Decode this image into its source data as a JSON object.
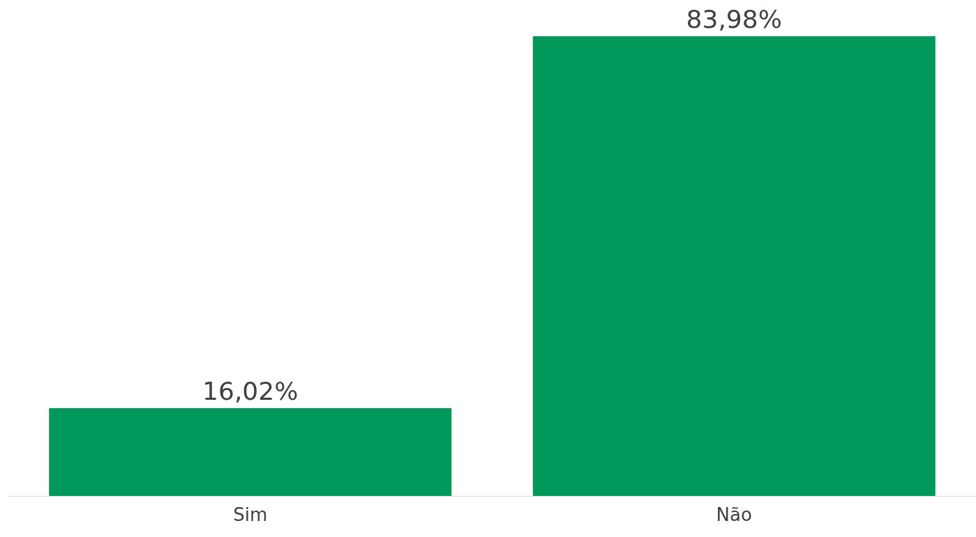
{
  "chart_data": {
    "type": "bar",
    "categories": [
      "Sim",
      "Não"
    ],
    "values": [
      16.02,
      83.98
    ],
    "value_labels": [
      "16,02%",
      "83,98%"
    ],
    "color": "#00985b",
    "grid": false,
    "tick_labels": "x"
  }
}
